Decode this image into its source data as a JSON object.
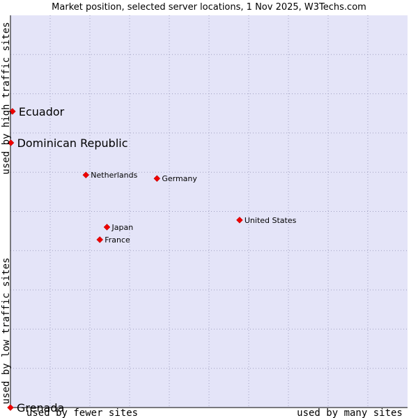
{
  "chart_data": {
    "type": "scatter",
    "title": "Market position, selected server locations, 1 Nov 2025, W3Techs.com",
    "xlabel_low": "used by fewer sites",
    "xlabel_high": "used by many sites",
    "ylabel_low": "used by low traffic sites",
    "ylabel_high": "used by high traffic sites",
    "xlim": [
      0,
      100
    ],
    "ylim": [
      0,
      100
    ],
    "grid": true,
    "colors": {
      "plot_background": "#e4e4f8",
      "grid": "#a0a0c0",
      "marker": "#ee0000",
      "axis": "#000000"
    },
    "points": [
      {
        "label": "Ecuador",
        "x": 0.5,
        "y": 75.5,
        "emphasis": "large"
      },
      {
        "label": "Dominican Republic",
        "x": 0.1,
        "y": 67.5,
        "emphasis": "large"
      },
      {
        "label": "Netherlands",
        "x": 19.0,
        "y": 59.3,
        "emphasis": "small"
      },
      {
        "label": "Germany",
        "x": 36.9,
        "y": 58.4,
        "emphasis": "small"
      },
      {
        "label": "United States",
        "x": 57.7,
        "y": 47.8,
        "emphasis": "small"
      },
      {
        "label": "Japan",
        "x": 24.3,
        "y": 46.0,
        "emphasis": "small"
      },
      {
        "label": "France",
        "x": 22.5,
        "y": 42.8,
        "emphasis": "small"
      },
      {
        "label": "Grenada",
        "x": 0.0,
        "y": 0.0,
        "emphasis": "large"
      }
    ]
  }
}
